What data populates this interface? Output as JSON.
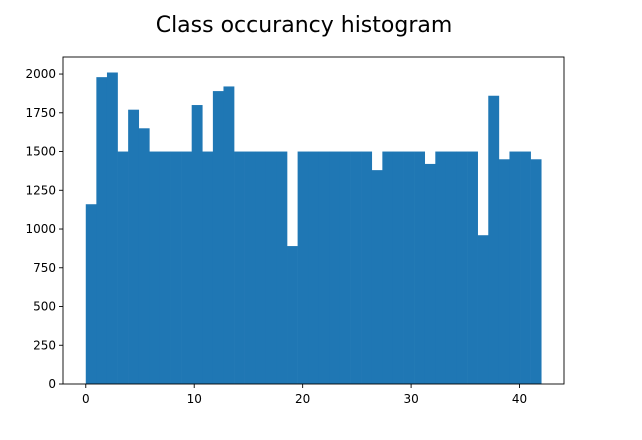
{
  "chart_data": {
    "type": "bar",
    "title": "Class occurancy histogram",
    "xlabel": "",
    "ylabel": "",
    "xlim": [
      -2.1,
      44.1
    ],
    "ylim": [
      0,
      2110
    ],
    "xticks": [
      0,
      10,
      20,
      30,
      40
    ],
    "yticks": [
      0,
      250,
      500,
      750,
      1000,
      1250,
      1500,
      1750,
      2000
    ],
    "grid": false,
    "bin_edges": [
      0,
      0.976744,
      1.953488,
      2.930233,
      3.906977,
      4.883721,
      5.860465,
      6.837209,
      7.813953,
      8.790698,
      9.767442,
      10.744186,
      11.72093,
      12.697674,
      13.674419,
      14.651163,
      15.627907,
      16.604651,
      17.581395,
      18.55814,
      19.534884,
      20.511628,
      21.488372,
      22.465116,
      23.44186,
      24.418605,
      25.395349,
      26.372093,
      27.348837,
      28.325581,
      29.302326,
      30.27907,
      31.255814,
      32.232558,
      33.209302,
      34.186047,
      35.162791,
      36.139535,
      37.116279,
      38.093023,
      39.069767,
      40.046512,
      41.023256,
      42
    ],
    "values": [
      1160,
      1980,
      2010,
      1500,
      1770,
      1650,
      1500,
      1500,
      1500,
      1500,
      1800,
      1500,
      1890,
      1920,
      1500,
      1500,
      1500,
      1500,
      1500,
      890,
      1500,
      1500,
      1500,
      1500,
      1500,
      1500,
      1500,
      1380,
      1500,
      1500,
      1500,
      1500,
      1420,
      1500,
      1500,
      1500,
      1500,
      960,
      1860,
      1450,
      1500,
      1500,
      1450
    ],
    "bar_color": "#1f77b4"
  }
}
